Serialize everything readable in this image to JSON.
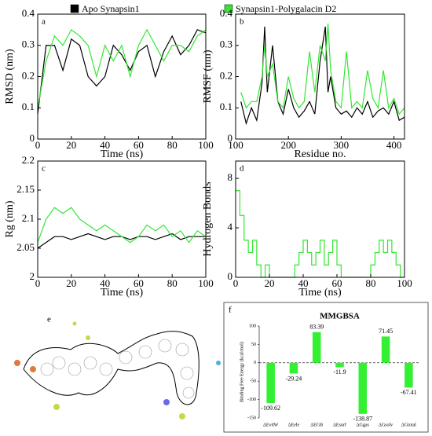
{
  "chart_data": [
    {
      "type": "line",
      "label": "a",
      "xlabel": "Time (ns)",
      "ylabel": "RMSD (nm)",
      "x": [
        0,
        5,
        10,
        15,
        20,
        25,
        30,
        35,
        40,
        45,
        50,
        55,
        60,
        65,
        70,
        75,
        80,
        85,
        90,
        95,
        100
      ],
      "series": [
        {
          "name": "Apo Synapsin1",
          "color": "#000000",
          "values": [
            0.08,
            0.3,
            0.3,
            0.22,
            0.32,
            0.3,
            0.2,
            0.17,
            0.2,
            0.3,
            0.27,
            0.22,
            0.28,
            0.3,
            0.2,
            0.28,
            0.33,
            0.27,
            0.3,
            0.35,
            0.34
          ]
        },
        {
          "name": "Synapsin1-Polygalacin D2",
          "color": "#33e633",
          "values": [
            0.1,
            0.25,
            0.33,
            0.3,
            0.35,
            0.33,
            0.3,
            0.2,
            0.3,
            0.25,
            0.3,
            0.2,
            0.3,
            0.35,
            0.3,
            0.25,
            0.3,
            0.3,
            0.28,
            0.33,
            0.35
          ]
        }
      ],
      "xlim": [
        0,
        100
      ],
      "xticks": [
        0,
        20,
        40,
        60,
        80,
        100
      ],
      "ylim": [
        0,
        0.4
      ],
      "yticks": [
        0,
        0.1,
        0.2,
        0.3,
        0.4
      ]
    },
    {
      "type": "line",
      "label": "b",
      "xlabel": "Residue no.",
      "ylabel": "RMSF (nm)",
      "x": [
        110,
        120,
        130,
        140,
        150,
        155,
        160,
        170,
        180,
        190,
        200,
        210,
        220,
        230,
        240,
        250,
        260,
        270,
        275,
        280,
        290,
        300,
        310,
        320,
        330,
        340,
        350,
        360,
        370,
        380,
        390,
        400,
        410,
        420
      ],
      "series": [
        {
          "color": "#000000",
          "values": [
            0.12,
            0.05,
            0.1,
            0.06,
            0.18,
            0.36,
            0.15,
            0.3,
            0.12,
            0.08,
            0.16,
            0.1,
            0.07,
            0.09,
            0.12,
            0.08,
            0.25,
            0.36,
            0.15,
            0.2,
            0.1,
            0.08,
            0.09,
            0.07,
            0.1,
            0.08,
            0.12,
            0.07,
            0.09,
            0.1,
            0.08,
            0.12,
            0.06,
            0.07
          ]
        },
        {
          "color": "#33e633",
          "values": [
            0.15,
            0.1,
            0.12,
            0.12,
            0.2,
            0.3,
            0.2,
            0.24,
            0.12,
            0.1,
            0.2,
            0.13,
            0.1,
            0.12,
            0.28,
            0.15,
            0.3,
            0.25,
            0.37,
            0.22,
            0.12,
            0.1,
            0.28,
            0.1,
            0.12,
            0.1,
            0.22,
            0.13,
            0.1,
            0.22,
            0.1,
            0.13,
            0.08,
            0.1
          ]
        }
      ],
      "xlim": [
        100,
        420
      ],
      "xticks": [
        100,
        200,
        300,
        400
      ],
      "ylim": [
        0,
        0.4
      ],
      "yticks": [
        0,
        0.1,
        0.2,
        0.3,
        0.4
      ]
    },
    {
      "type": "line",
      "label": "c",
      "xlabel": "Time (ns)",
      "ylabel": "Rg (nm)",
      "x": [
        0,
        5,
        10,
        15,
        20,
        25,
        30,
        35,
        40,
        45,
        50,
        55,
        60,
        65,
        70,
        75,
        80,
        85,
        90,
        95,
        100
      ],
      "series": [
        {
          "color": "#000000",
          "values": [
            2.05,
            2.06,
            2.07,
            2.07,
            2.065,
            2.07,
            2.075,
            2.07,
            2.065,
            2.07,
            2.07,
            2.065,
            2.07,
            2.07,
            2.065,
            2.07,
            2.075,
            2.065,
            2.07,
            2.07,
            2.07
          ]
        },
        {
          "color": "#33e633",
          "values": [
            2.06,
            2.1,
            2.12,
            2.11,
            2.12,
            2.1,
            2.09,
            2.08,
            2.09,
            2.08,
            2.07,
            2.06,
            2.07,
            2.09,
            2.08,
            2.09,
            2.07,
            2.08,
            2.06,
            2.08,
            2.07
          ]
        }
      ],
      "xlim": [
        0,
        100
      ],
      "xticks": [
        0,
        20,
        40,
        60,
        80,
        100
      ],
      "ylim": [
        2,
        2.2
      ],
      "yticks": [
        2,
        2.05,
        2.1,
        2.15,
        2.2
      ]
    },
    {
      "type": "line",
      "label": "d",
      "xlabel": "Time (ns)",
      "ylabel": "Hydrogen Bonds",
      "drawstyle": "steps",
      "x": [
        0,
        2.5,
        5,
        7.5,
        10,
        12.5,
        15,
        17.5,
        20,
        22.5,
        25,
        27.5,
        30,
        32.5,
        35,
        37.5,
        40,
        42.5,
        45,
        47.5,
        50,
        52.5,
        55,
        57.5,
        60,
        62.5,
        65,
        67.5,
        70,
        72.5,
        75,
        77.5,
        80,
        82.5,
        85,
        87.5,
        90,
        92.5,
        95,
        97.5,
        100
      ],
      "series": [
        {
          "color": "#33e633",
          "values": [
            7,
            5,
            3,
            2,
            3,
            1,
            0,
            1,
            0,
            0,
            0,
            0,
            0,
            0,
            1,
            2,
            3,
            2,
            1,
            2,
            3,
            1,
            2,
            3,
            1,
            0,
            0,
            0,
            0,
            0,
            0,
            0,
            1,
            2,
            3,
            2,
            3,
            2,
            1,
            0,
            0
          ]
        }
      ],
      "xlim": [
        0,
        100
      ],
      "xticks": [
        0,
        20,
        40,
        60,
        80,
        100
      ],
      "ylim": [
        0,
        9.4
      ],
      "yticks": [
        0,
        4,
        8
      ]
    },
    {
      "type": "bar",
      "label": "f",
      "title": "MMGBSA",
      "ylabel": "Binding Free Energy (kcal/mol)",
      "categories": [
        "ΔEvdW",
        "ΔEele",
        "ΔEGB",
        "ΔEsurf",
        "ΔGgas",
        "ΔGsolv",
        "ΔGtotal"
      ],
      "values": [
        -109.62,
        -29.24,
        83.39,
        -11.9,
        -138.87,
        71.45,
        -67.41
      ],
      "color": "#33f033",
      "ylim": [
        -150,
        100
      ],
      "yticks": [
        -150,
        -100,
        -50,
        0,
        50,
        100
      ]
    }
  ],
  "diagram": {
    "label": "e"
  }
}
